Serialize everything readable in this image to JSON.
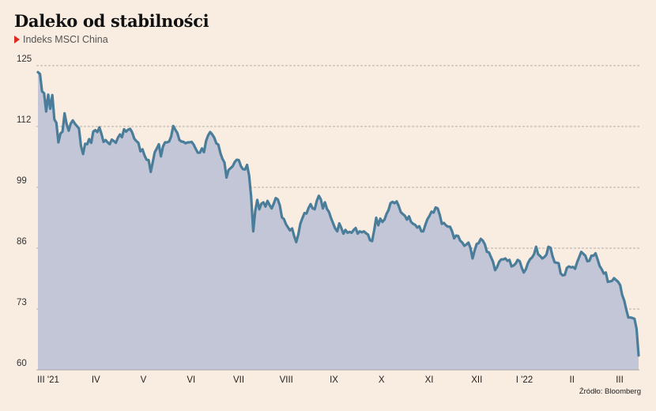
{
  "chart_data": {
    "type": "area",
    "title": "Daleko od stabilności",
    "series": [
      {
        "name": "Indeks MSCI China",
        "color": "#4a7d9a",
        "fill": "#c2c6d6",
        "values": [
          123.6,
          123.2,
          119.5,
          119.1,
          115.2,
          118.8,
          115.8,
          118.7,
          113.5,
          112.8,
          108.6,
          110.5,
          110.9,
          114.8,
          112.5,
          111.1,
          112.6,
          113.3,
          112.6,
          112.1,
          111.6,
          107.8,
          106.1,
          108.3,
          108.2,
          109.3,
          108.5,
          110.9,
          111.2,
          110.8,
          111.8,
          110.4,
          108.7,
          109.1,
          108.6,
          108.2,
          109.2,
          108.9,
          108.5,
          109.6,
          110.3,
          109.7,
          111.4,
          110.9,
          111.3,
          111.5,
          110.7,
          109.4,
          108.9,
          108.5,
          106.7,
          107.1,
          105.8,
          104.9,
          104.8,
          102.3,
          104.4,
          106.5,
          107.3,
          108.2,
          105.6,
          107.7,
          108.6,
          108.6,
          108.8,
          109.9,
          112.1,
          111.3,
          110.6,
          109.1,
          108.8,
          108.7,
          108.4,
          108.6,
          108.6,
          108.7,
          108.1,
          107.2,
          106.4,
          106.4,
          107.3,
          106.5,
          108.9,
          110.1,
          110.8,
          110.3,
          109.6,
          108.4,
          108.1,
          106.3,
          105.1,
          104.3,
          101.1,
          102.7,
          103.1,
          103.5,
          104.4,
          104.9,
          104.8,
          103.5,
          102.9,
          102.8,
          103.8,
          101.5,
          96.9,
          89.6,
          93.9,
          96.3,
          94.3,
          95.5,
          95.8,
          94.9,
          96.1,
          95.2,
          94.5,
          95.5,
          96.7,
          96.4,
          95.1,
          92.6,
          92.2,
          91.1,
          90.4,
          89.8,
          90.2,
          88.6,
          87.3,
          88.9,
          91.2,
          92.4,
          93.5,
          93.4,
          94.6,
          95.4,
          94.5,
          94.3,
          96.1,
          97.2,
          96.4,
          94.5,
          95.8,
          94.4,
          93.7,
          92.4,
          91.3,
          90.2,
          89.6,
          91.3,
          90.3,
          89.1,
          89.9,
          89.3,
          89.5,
          89.3,
          89.9,
          90.3,
          89.1,
          89.6,
          89.4,
          89.6,
          89.2,
          88.9,
          87.7,
          87.5,
          89.8,
          92.5,
          90.9,
          92.3,
          91.6,
          92.1,
          93.3,
          94.1,
          95.6,
          95.9,
          95.6,
          96.0,
          95.0,
          93.7,
          93.3,
          92.9,
          92.1,
          92.8,
          91.6,
          91.2,
          91.0,
          90.4,
          90.7,
          89.6,
          89.6,
          91.0,
          92.2,
          92.9,
          93.8,
          93.6,
          94.7,
          94.5,
          93.1,
          91.2,
          91.4,
          90.9,
          90.6,
          90.6,
          89.6,
          88.1,
          88.7,
          88.6,
          87.6,
          87.2,
          86.5,
          86.8,
          87.2,
          86.0,
          83.8,
          85.5,
          86.9,
          87.1,
          88.0,
          87.6,
          86.8,
          85.2,
          85.1,
          84.1,
          83.1,
          81.3,
          82.0,
          83.1,
          83.6,
          83.6,
          83.8,
          83.3,
          83.5,
          82.1,
          82.3,
          82.7,
          83.5,
          83.2,
          81.8,
          80.8,
          81.5,
          82.8,
          83.6,
          84.0,
          84.7,
          86.3,
          84.7,
          84.3,
          83.8,
          84.1,
          84.6,
          86.3,
          86.1,
          84.3,
          83.0,
          82.9,
          82.8,
          80.6,
          80.2,
          80.3,
          81.8,
          82.1,
          81.9,
          82.0,
          81.6,
          83.0,
          84.1,
          85.2,
          84.8,
          84.4,
          83.2,
          83.3,
          84.4,
          84.4,
          84.9,
          83.6,
          82.2,
          81.5,
          80.6,
          80.8,
          78.8,
          78.9,
          79.0,
          79.6,
          79.2,
          78.8,
          78.1,
          76.0,
          74.8,
          72.9,
          71.2,
          71.2,
          71.1,
          70.9,
          68.8,
          63.1
        ]
      }
    ],
    "x_labels": [
      "III '21",
      "IV",
      "V",
      "VI",
      "VII",
      "VIII",
      "IX",
      "X",
      "XI",
      "XII",
      "I '22",
      "II",
      "III"
    ],
    "y_ticks": [
      60,
      73,
      86,
      99,
      112,
      125
    ],
    "ylim": [
      60,
      125
    ],
    "grid": "horizontal-dashed",
    "note": "Źródło: Bloomberg"
  }
}
